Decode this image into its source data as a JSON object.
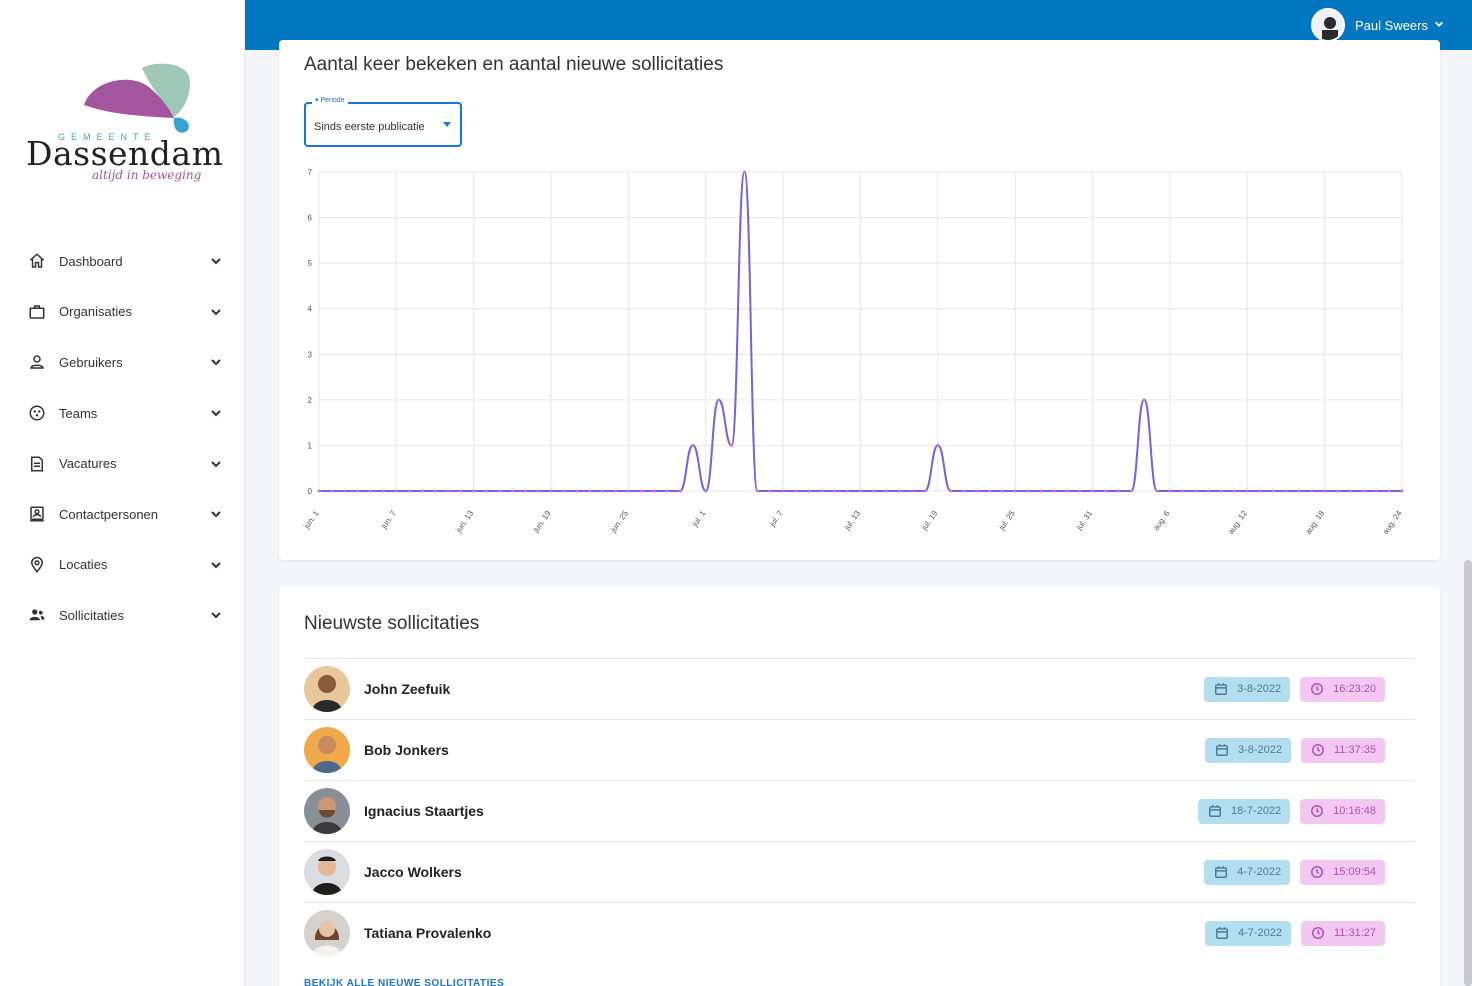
{
  "brand": {
    "gemeente": "GEMEENTE",
    "name": "Dassendam",
    "tagline": "altijd in beweging",
    "colors": {
      "purple": "#a3569e",
      "green": "#9fc7b5",
      "blue": "#3aa1d6"
    }
  },
  "header": {
    "background": "#0077c0",
    "user_name": "Paul Sweers"
  },
  "sidebar": {
    "items": [
      {
        "label": "Dashboard",
        "icon": "home-icon"
      },
      {
        "label": "Organisaties",
        "icon": "briefcase-icon"
      },
      {
        "label": "Gebruikers",
        "icon": "person-icon"
      },
      {
        "label": "Teams",
        "icon": "teams-icon"
      },
      {
        "label": "Vacatures",
        "icon": "document-icon"
      },
      {
        "label": "Contactpersonen",
        "icon": "contact-card-icon"
      },
      {
        "label": "Locaties",
        "icon": "location-pin-icon"
      },
      {
        "label": "Sollicitaties",
        "icon": "people-icon"
      }
    ]
  },
  "chart_card": {
    "title": "Aantal keer bekeken en aantal nieuwe sollicitaties",
    "filter": {
      "legend": "Periode",
      "value": "Sinds eerste publicatie"
    }
  },
  "chart_data": {
    "type": "line",
    "title": "",
    "xlabel": "",
    "ylabel": "",
    "ylim": [
      0,
      7
    ],
    "yticks": [
      "0",
      "1",
      "2",
      "3",
      "4",
      "5",
      "6",
      "7"
    ],
    "xticks": [
      "jun. 1",
      "jun. 7",
      "jun. 13",
      "jun. 19",
      "jun. 25",
      "jul. 1",
      "jul. 7",
      "jul. 13",
      "jul. 19",
      "jul. 25",
      "jul. 31",
      "aug. 6",
      "aug. 12",
      "aug. 18",
      "aug. 24"
    ],
    "grid": true,
    "color": "#7b61d6",
    "series": [
      {
        "x": [
          "jun. 1",
          "jun. 2",
          "jun. 3",
          "jun. 4",
          "jun. 5",
          "jun. 6",
          "jun. 7",
          "jun. 8",
          "jun. 9",
          "jun. 10",
          "jun. 11",
          "jun. 12",
          "jun. 13",
          "jun. 14",
          "jun. 15",
          "jun. 16",
          "jun. 17",
          "jun. 18",
          "jun. 19",
          "jun. 20",
          "jun. 21",
          "jun. 22",
          "jun. 23",
          "jun. 24",
          "jun. 25",
          "jun. 26",
          "jun. 27",
          "jun. 28",
          "jun. 29",
          "jun. 30",
          "jul. 1",
          "jul. 2",
          "jul. 3",
          "jul. 4",
          "jul. 5",
          "jul. 6",
          "jul. 7",
          "jul. 8",
          "jul. 9",
          "jul. 10",
          "jul. 11",
          "jul. 12",
          "jul. 13",
          "jul. 14",
          "jul. 15",
          "jul. 16",
          "jul. 17",
          "jul. 18",
          "jul. 19",
          "jul. 20",
          "jul. 21",
          "jul. 22",
          "jul. 23",
          "jul. 24",
          "jul. 25",
          "jul. 26",
          "jul. 27",
          "jul. 28",
          "jul. 29",
          "jul. 30",
          "jul. 31",
          "aug. 1",
          "aug. 2",
          "aug. 3",
          "aug. 4",
          "aug. 5",
          "aug. 6",
          "aug. 7",
          "aug. 8",
          "aug. 9",
          "aug. 10",
          "aug. 11",
          "aug. 12",
          "aug. 13",
          "aug. 14",
          "aug. 15",
          "aug. 16",
          "aug. 17",
          "aug. 18",
          "aug. 19",
          "aug. 20",
          "aug. 21",
          "aug. 22",
          "aug. 23",
          "aug. 24"
        ],
        "values": [
          0,
          0,
          0,
          0,
          0,
          0,
          0,
          0,
          0,
          0,
          0,
          0,
          0,
          0,
          0,
          0,
          0,
          0,
          0,
          0,
          0,
          0,
          0,
          0,
          0,
          0,
          0,
          0,
          0,
          1,
          0,
          2,
          1,
          7,
          0,
          0,
          0,
          0,
          0,
          0,
          0,
          0,
          0,
          0,
          0,
          0,
          0,
          0,
          1,
          0,
          0,
          0,
          0,
          0,
          0,
          0,
          0,
          0,
          0,
          0,
          0,
          0,
          0,
          0,
          2,
          0,
          0,
          0,
          0,
          0,
          0,
          0,
          0,
          0,
          0,
          0,
          0,
          0,
          0,
          0,
          0,
          0,
          0,
          0,
          0
        ]
      }
    ]
  },
  "applications_card": {
    "title": "Nieuwste sollicitaties",
    "view_all": "BEKIJK ALLE NIEUWE SOLLICITATIES",
    "rows": [
      {
        "name": "John Zeefuik",
        "date": "3-8-2022",
        "time": "16:23:20",
        "avatar_bg": "#e8c79a"
      },
      {
        "name": "Bob Jonkers",
        "date": "3-8-2022",
        "time": "11:37:35",
        "avatar_bg": "#f0a94a"
      },
      {
        "name": "Ignacius Staartjes",
        "date": "18-7-2022",
        "time": "10:16:48",
        "avatar_bg": "#8a8f96"
      },
      {
        "name": "Jacco Wolkers",
        "date": "4-7-2022",
        "time": "15:09:54",
        "avatar_bg": "#d9dde1"
      },
      {
        "name": "Tatiana Provalenko",
        "date": "4-7-2022",
        "time": "11:31:27",
        "avatar_bg": "#d6d1cc"
      }
    ]
  }
}
